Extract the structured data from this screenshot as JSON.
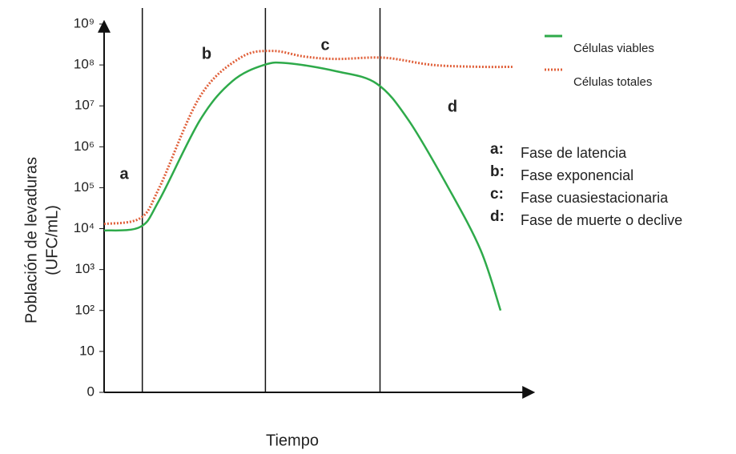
{
  "chart_data": {
    "type": "line",
    "y_label": [
      "Población de levaduras",
      "(UFC/mL)"
    ],
    "x_label": "Tiempo",
    "log_scale": true,
    "xlim": [
      0,
      100
    ],
    "ylim": [
      1,
      1000000000
    ],
    "yticks": [
      0,
      10,
      {
        "value": 100,
        "label": "10²"
      },
      {
        "value": 1000,
        "label": "10³"
      },
      {
        "value": 10000,
        "label": "10⁴"
      },
      {
        "value": 100000,
        "label": "10⁵"
      },
      {
        "value": 1000000,
        "label": "10⁶"
      },
      {
        "value": 10000000,
        "label": "10⁷"
      },
      {
        "value": 100000000,
        "label": "10⁸"
      },
      {
        "value": 1000000000,
        "label": "10⁹"
      }
    ],
    "phase_boundaries": [
      9,
      38,
      65
    ],
    "phase_letters": [
      "a",
      "b",
      "c",
      "d"
    ],
    "series": [
      {
        "name": "Células viables",
        "color": "#2eaa4a",
        "style": "solid",
        "x": [
          0,
          8.5,
          13,
          22.6,
          30.2,
          37.7,
          43.4,
          54.7,
          64.2,
          71.7,
          81.1,
          88.7,
          93.4
        ],
        "values": [
          9000,
          11000,
          50000,
          4500000,
          40000000,
          100000000,
          110000000,
          70000000,
          35000000,
          4500000,
          100000,
          3000,
          100
        ]
      },
      {
        "name": "Células totales",
        "color": "#e0603a",
        "style": "dotted",
        "x": [
          0,
          8.5,
          13,
          22.6,
          32.1,
          39.6,
          47.2,
          54.7,
          66,
          77.4,
          88.7,
          96.2
        ],
        "values": [
          13000,
          18000,
          100000,
          17000000,
          150000000,
          220000000,
          160000000,
          140000000,
          150000000,
          100000000,
          90000000,
          90000000
        ]
      }
    ],
    "phase_legend": [
      {
        "key": "a:",
        "text": "Fase de latencia"
      },
      {
        "key": "b:",
        "text": "Fase exponencial"
      },
      {
        "key": "c:",
        "text": "Fase cuasiestacionaria"
      },
      {
        "key": "d:",
        "text": "Fase de muerte o declive"
      }
    ]
  }
}
